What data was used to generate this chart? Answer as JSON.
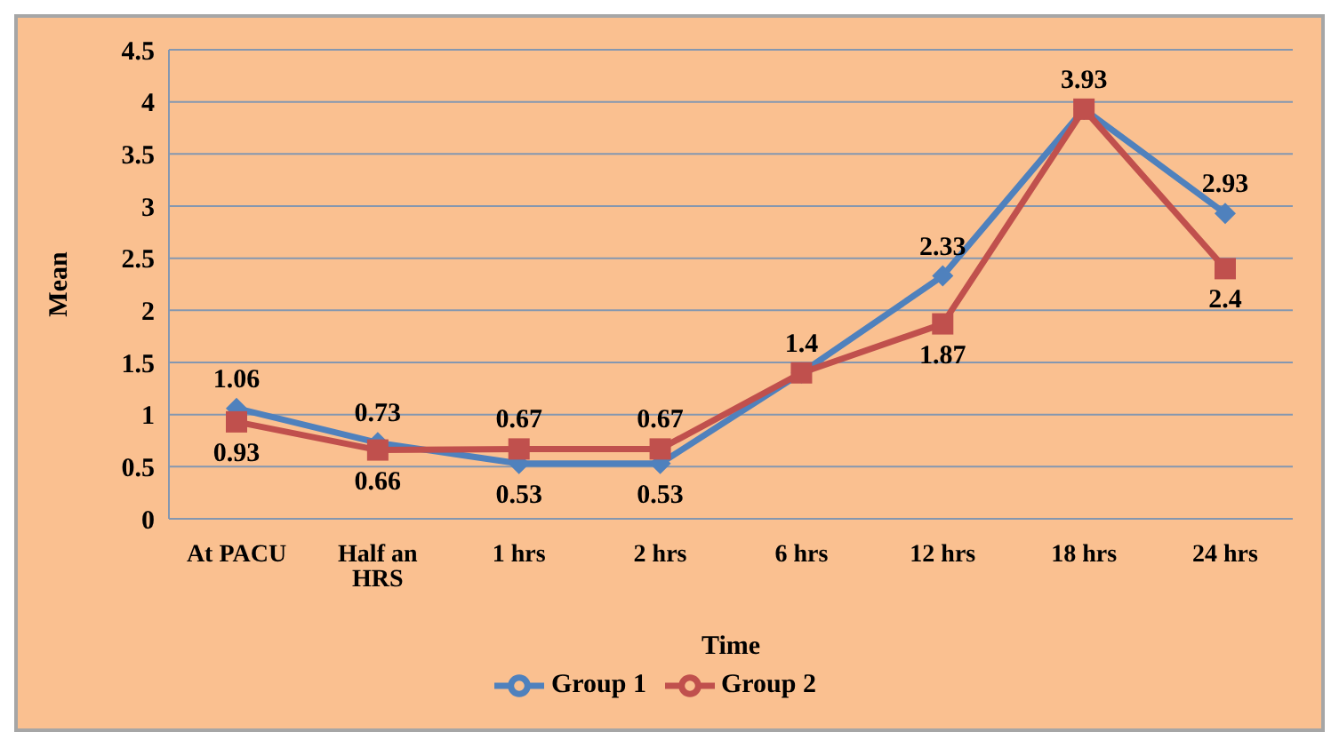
{
  "chart_data": {
    "type": "line",
    "xlabel": "Time",
    "ylabel": "Mean",
    "categories": [
      "At PACU",
      "Half an HRS",
      "1 hrs",
      "2 hrs",
      "6 hrs",
      "12 hrs",
      "18 hrs",
      "24 hrs"
    ],
    "series": [
      {
        "name": "Group 1",
        "color": "#4f81bd",
        "marker": "diamond",
        "values": [
          1.06,
          0.73,
          0.53,
          0.53,
          1.4,
          2.33,
          3.93,
          2.93
        ],
        "value_labels": [
          "1.06",
          "0.73",
          "0.53",
          "0.53",
          "1.4",
          "2.33",
          "3.93",
          "2.93"
        ]
      },
      {
        "name": "Group 2",
        "color": "#c0504d",
        "marker": "square",
        "values": [
          0.93,
          0.66,
          0.67,
          0.67,
          1.4,
          1.87,
          3.93,
          2.4
        ],
        "value_labels": [
          "0.93",
          "0.66",
          "0.67",
          "0.67",
          null,
          "1.87",
          null,
          "2.4"
        ]
      }
    ],
    "ylim": [
      0,
      4.5
    ],
    "yticks": [
      0,
      0.5,
      1,
      1.5,
      2,
      2.5,
      3,
      3.5,
      4,
      4.5
    ],
    "grid": "y",
    "legend": "bottom"
  }
}
